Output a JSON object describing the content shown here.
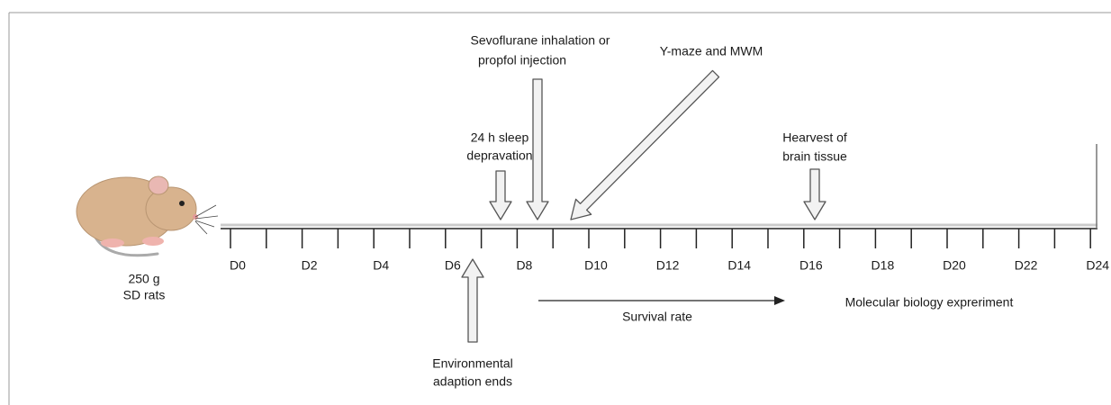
{
  "subjects": {
    "line1": "250 g",
    "line2": "SD rats"
  },
  "days": [
    "D0",
    "D2",
    "D4",
    "D6",
    "D8",
    "D10",
    "D12",
    "D14",
    "D16",
    "D18",
    "D20",
    "D22",
    "D24"
  ],
  "events": {
    "sleep": {
      "line1": "24 h sleep",
      "line2": "depravation"
    },
    "anesthesia": {
      "line1": "Sevoflurane inhalation or",
      "line2": "propfol injection"
    },
    "behavior": {
      "line1": "Y-maze and MWM"
    },
    "harvest": {
      "line1": "Hearvest of",
      "line2": "brain tissue"
    },
    "adaption": {
      "line1": "Environmental",
      "line2": "adaption ends"
    }
  },
  "survival": "Survival rate",
  "molecular": "Molecular biology expreriment"
}
